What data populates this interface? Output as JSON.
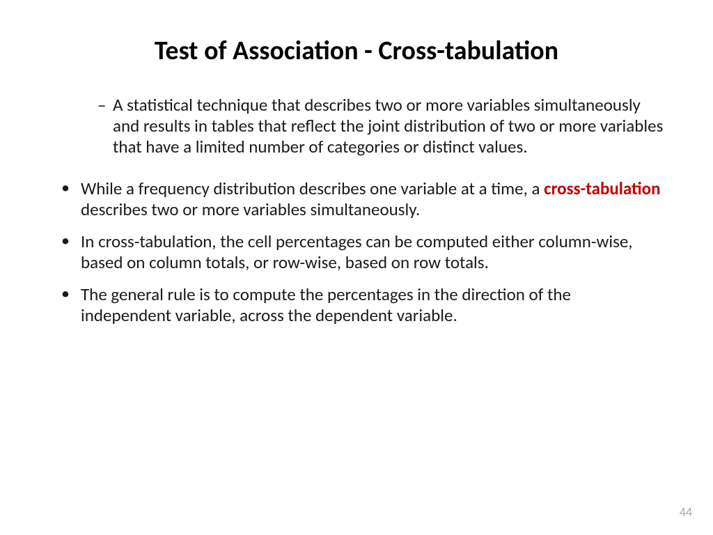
{
  "slide": {
    "title": "Test of Association - Cross-tabulation",
    "definition": "A statistical technique that describes two or more variables simultaneously and results in tables that reflect the joint distribution of two or more variables that have a limited number of categories or distinct values.",
    "bullets": [
      {
        "pre": "While a frequency distribution describes one variable at a time, a ",
        "highlight": "cross-tabulation",
        "post": " describes two or more variables simultaneously."
      },
      {
        "text": "In cross-tabulation, the cell percentages can be computed either column-wise, based on column totals, or row-wise, based on row totals."
      },
      {
        "text": "The general rule is to compute the percentages in the direction of the independent variable, across the dependent variable."
      }
    ],
    "page_number": "44"
  },
  "styling": {
    "background_color": "#ffffff",
    "text_color": "#1a1a1a",
    "highlight_color": "#c00000",
    "page_number_color": "#aaaaaa",
    "title_fontsize": 38,
    "body_fontsize": 25,
    "font_family": "Calibri"
  }
}
